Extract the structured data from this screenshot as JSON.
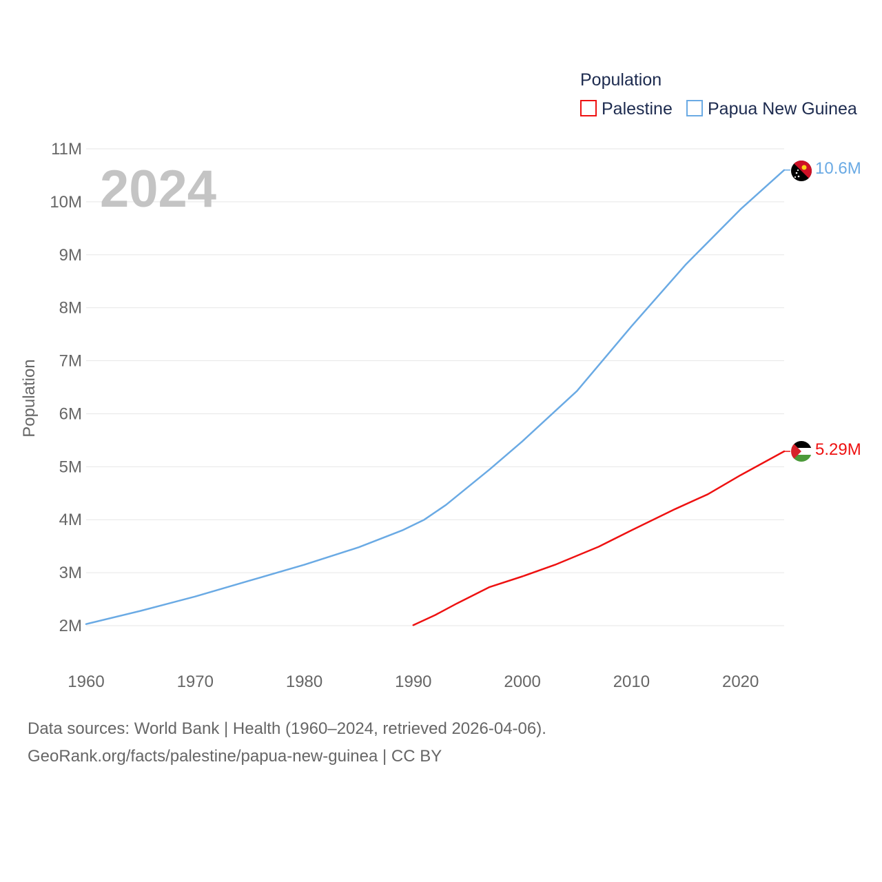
{
  "chart_data": {
    "type": "line",
    "year_label": "2024",
    "ylabel": "Population",
    "xlabel": "",
    "legend": {
      "title": "Population",
      "position": "top-right"
    },
    "xlim": [
      1960,
      2024
    ],
    "ylim": [
      2000000,
      11000000
    ],
    "x_ticks": [
      1960,
      1970,
      1980,
      1990,
      2000,
      2010,
      2020
    ],
    "x_tick_labels": [
      "1960",
      "1970",
      "1980",
      "1990",
      "2000",
      "2010",
      "2020"
    ],
    "y_ticks": [
      2000000,
      3000000,
      4000000,
      5000000,
      6000000,
      7000000,
      8000000,
      9000000,
      10000000,
      11000000
    ],
    "y_tick_labels": [
      "2M",
      "3M",
      "4M",
      "5M",
      "6M",
      "7M",
      "8M",
      "9M",
      "10M",
      "11M"
    ],
    "series": [
      {
        "name": "Palestine",
        "color": "#ee1111",
        "end_label": "5.29M",
        "flag": "palestine-flag",
        "x": [
          1990,
          1992,
          1994,
          1997,
          2000,
          2003,
          2007,
          2010,
          2014,
          2017,
          2020,
          2024
        ],
        "values": [
          2010000,
          2200000,
          2420000,
          2730000,
          2930000,
          3150000,
          3490000,
          3800000,
          4200000,
          4480000,
          4840000,
          5290000
        ]
      },
      {
        "name": "Papua New Guinea",
        "color": "#6aaae4",
        "end_label": "10.6M",
        "flag": "papua-new-guinea-flag",
        "x": [
          1960,
          1965,
          1970,
          1975,
          1980,
          1985,
          1989,
          1991,
          1993,
          1997,
          2000,
          2005,
          2010,
          2015,
          2020,
          2024
        ],
        "values": [
          2030000,
          2280000,
          2550000,
          2850000,
          3150000,
          3480000,
          3800000,
          4000000,
          4280000,
          4950000,
          5480000,
          6430000,
          7650000,
          8820000,
          9860000,
          10600000
        ]
      }
    ]
  },
  "footer": {
    "line1": "Data sources: World Bank | Health (1960–2024, retrieved 2026-04-06).",
    "line2": "GeoRank.org/facts/palestine/papua-new-guinea | CC BY"
  }
}
